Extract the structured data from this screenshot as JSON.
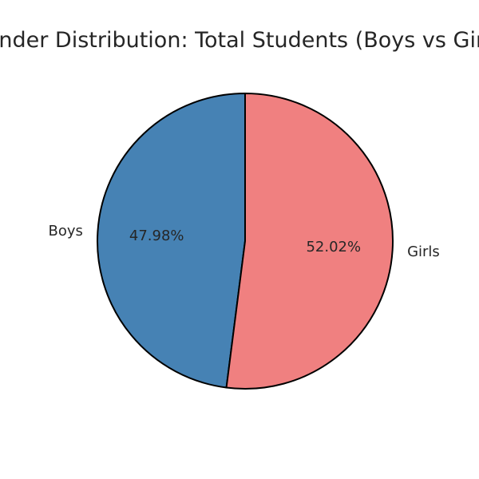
{
  "chart_data": {
    "type": "pie",
    "title": "Gender Distribution: Total Students (Boys vs Girls)",
    "categories": [
      "Boys",
      "Girls"
    ],
    "values": [
      47.98,
      52.02
    ],
    "value_labels": [
      "47.98%",
      "52.02%"
    ],
    "colors": [
      "#4682b4",
      "#f08080"
    ],
    "edge_color": "#000000",
    "start_angle_deg": 90,
    "direction": "counterclockwise"
  }
}
